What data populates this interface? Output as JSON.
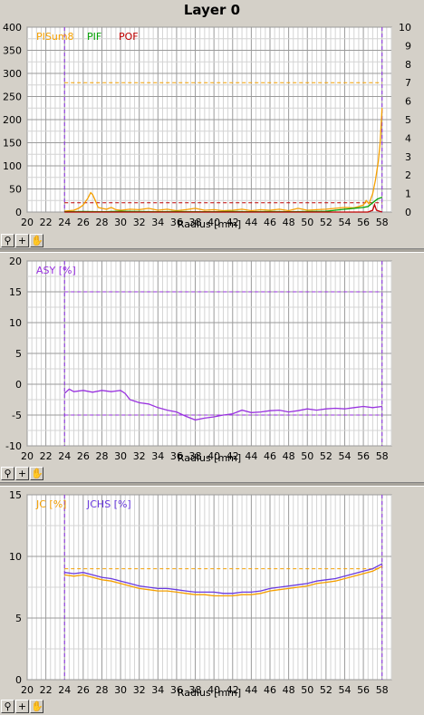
{
  "window": {
    "title": "Layer 0"
  },
  "toolbar": {
    "icons": [
      "zoom-icon",
      "crosshair-icon",
      "hand-icon"
    ],
    "zoom_glyph": "⚲",
    "cross_glyph": "+",
    "hand_glyph": "✋"
  },
  "colors": {
    "grid": "#a0a0a0",
    "background": "#ffffff",
    "pisum": "#f5a000",
    "pif": "#00a000",
    "pof": "#c00000",
    "asy": "#9932e0",
    "jc": "#f5a000",
    "jchs": "#6a3ae0",
    "marker": "#8a2be2"
  },
  "chart_data": [
    {
      "type": "line",
      "xlabel": "Radius [mm]",
      "x_ticks": [
        20,
        22,
        24,
        26,
        28,
        30,
        32,
        34,
        36,
        38,
        40,
        42,
        44,
        46,
        48,
        50,
        52,
        54,
        56,
        58
      ],
      "xlim": [
        20,
        59
      ],
      "ylim_left": [
        0,
        400
      ],
      "y_ticks_left": [
        0,
        50,
        100,
        150,
        200,
        250,
        300,
        350,
        400
      ],
      "ylim_right": [
        0,
        10
      ],
      "y_ticks_right": [
        0,
        1,
        2,
        3,
        4,
        5,
        6,
        7,
        8,
        9,
        10
      ],
      "grid": true,
      "legend": "top-left",
      "vertical_markers": [
        24,
        58
      ],
      "thresholds": [
        {
          "name": "PISum8 limit",
          "y": 280,
          "color": "#f5a000"
        },
        {
          "name": "POF limit",
          "y": 20,
          "color": "#c00000"
        }
      ],
      "series": [
        {
          "name": "PISum8",
          "axis": "left",
          "x": [
            24,
            24.5,
            25,
            25.5,
            26,
            26.5,
            26.8,
            27,
            27.3,
            27.6,
            28,
            28.5,
            29,
            29.5,
            30,
            31,
            32,
            33,
            34,
            35,
            36,
            37,
            38,
            39,
            40,
            41,
            42,
            43,
            44,
            45,
            46,
            47,
            48,
            49,
            50,
            51,
            52,
            53,
            54,
            55,
            55.5,
            56,
            56.3,
            56.6,
            57,
            57.3,
            57.6,
            57.8,
            58
          ],
          "y": [
            2,
            3,
            4,
            8,
            15,
            30,
            42,
            38,
            25,
            10,
            8,
            6,
            10,
            5,
            4,
            6,
            5,
            8,
            4,
            6,
            3,
            5,
            8,
            4,
            5,
            3,
            4,
            6,
            3,
            5,
            4,
            6,
            3,
            8,
            4,
            5,
            6,
            8,
            10,
            9,
            12,
            15,
            25,
            18,
            40,
            70,
            110,
            150,
            225
          ]
        },
        {
          "name": "PIF",
          "axis": "right",
          "x": [
            24,
            26,
            28,
            30,
            32,
            34,
            36,
            38,
            40,
            42,
            44,
            46,
            48,
            50,
            52,
            53,
            54,
            55,
            56,
            56.5,
            57,
            57.5,
            58
          ],
          "y": [
            0.02,
            0.03,
            0.02,
            0.04,
            0.03,
            0.02,
            0.03,
            0.02,
            0.02,
            0.03,
            0.02,
            0.03,
            0.02,
            0.03,
            0.04,
            0.1,
            0.15,
            0.2,
            0.25,
            0.3,
            0.5,
            0.7,
            0.8
          ]
        },
        {
          "name": "POF",
          "axis": "right",
          "x": [
            24,
            56.5,
            57,
            57.2,
            57.4,
            58
          ],
          "y": [
            0,
            0,
            0.1,
            0.4,
            0.1,
            0
          ]
        }
      ]
    },
    {
      "type": "line",
      "xlabel": "Radius [mm]",
      "x_ticks": [
        20,
        22,
        24,
        26,
        28,
        30,
        32,
        34,
        36,
        38,
        40,
        42,
        44,
        46,
        48,
        50,
        52,
        54,
        56,
        58
      ],
      "xlim": [
        20,
        59
      ],
      "ylim": [
        -10,
        20
      ],
      "y_ticks": [
        -10,
        -5,
        0,
        5,
        10,
        15,
        20
      ],
      "grid": true,
      "legend": "top-left",
      "vertical_markers": [
        24,
        58
      ],
      "thresholds": [
        {
          "name": "ASY upper",
          "y": 15,
          "color": "#9932e0"
        },
        {
          "name": "ASY lower",
          "y": -5,
          "color": "#9932e0"
        }
      ],
      "series": [
        {
          "name": "ASY [%]",
          "x": [
            24,
            24.5,
            25,
            26,
            27,
            28,
            29,
            30,
            30.5,
            31,
            32,
            33,
            34,
            35,
            36,
            37,
            38,
            39,
            40,
            41,
            42,
            43,
            44,
            45,
            46,
            47,
            48,
            49,
            50,
            51,
            52,
            53,
            54,
            55,
            56,
            57,
            58
          ],
          "y": [
            -1.5,
            -0.8,
            -1.2,
            -1.0,
            -1.3,
            -1.0,
            -1.2,
            -1.0,
            -1.5,
            -2.5,
            -3.0,
            -3.2,
            -3.8,
            -4.2,
            -4.5,
            -5.2,
            -5.8,
            -5.5,
            -5.3,
            -5.0,
            -4.8,
            -4.2,
            -4.6,
            -4.5,
            -4.3,
            -4.2,
            -4.5,
            -4.3,
            -4.0,
            -4.2,
            -4.0,
            -3.9,
            -4.0,
            -3.8,
            -3.6,
            -3.8,
            -3.6
          ]
        }
      ]
    },
    {
      "type": "line",
      "xlabel": "Radius [mm]",
      "x_ticks": [
        20,
        22,
        24,
        26,
        28,
        30,
        32,
        34,
        36,
        38,
        40,
        42,
        44,
        46,
        48,
        50,
        52,
        54,
        56,
        58
      ],
      "xlim": [
        20,
        59
      ],
      "ylim": [
        0,
        15
      ],
      "y_ticks": [
        0,
        5,
        10,
        15
      ],
      "grid": true,
      "legend": "top-left",
      "vertical_markers": [
        24,
        58
      ],
      "thresholds": [
        {
          "name": "JC limit",
          "y": 9,
          "color": "#f5a000"
        }
      ],
      "series": [
        {
          "name": "JC [%]",
          "x": [
            24,
            25,
            26,
            27,
            28,
            29,
            30,
            31,
            32,
            33,
            34,
            35,
            36,
            37,
            38,
            39,
            40,
            41,
            42,
            43,
            44,
            45,
            46,
            47,
            48,
            49,
            50,
            51,
            52,
            53,
            54,
            55,
            56,
            57,
            58
          ],
          "y": [
            8.5,
            8.4,
            8.5,
            8.3,
            8.1,
            8.0,
            7.8,
            7.6,
            7.4,
            7.3,
            7.2,
            7.2,
            7.1,
            7.0,
            6.9,
            6.9,
            6.8,
            6.8,
            6.8,
            6.9,
            6.9,
            7.0,
            7.2,
            7.3,
            7.4,
            7.5,
            7.6,
            7.8,
            7.9,
            8.0,
            8.2,
            8.4,
            8.6,
            8.8,
            9.2
          ]
        },
        {
          "name": "JCHS [%]",
          "x": [
            24,
            25,
            26,
            27,
            28,
            29,
            30,
            31,
            32,
            33,
            34,
            35,
            36,
            37,
            38,
            39,
            40,
            41,
            42,
            43,
            44,
            45,
            46,
            47,
            48,
            49,
            50,
            51,
            52,
            53,
            54,
            55,
            56,
            57,
            58
          ],
          "y": [
            8.7,
            8.6,
            8.7,
            8.5,
            8.3,
            8.2,
            8.0,
            7.8,
            7.6,
            7.5,
            7.4,
            7.4,
            7.3,
            7.2,
            7.1,
            7.1,
            7.1,
            7.0,
            7.0,
            7.1,
            7.1,
            7.2,
            7.4,
            7.5,
            7.6,
            7.7,
            7.8,
            8.0,
            8.1,
            8.2,
            8.4,
            8.6,
            8.8,
            9.0,
            9.4
          ]
        }
      ]
    }
  ]
}
